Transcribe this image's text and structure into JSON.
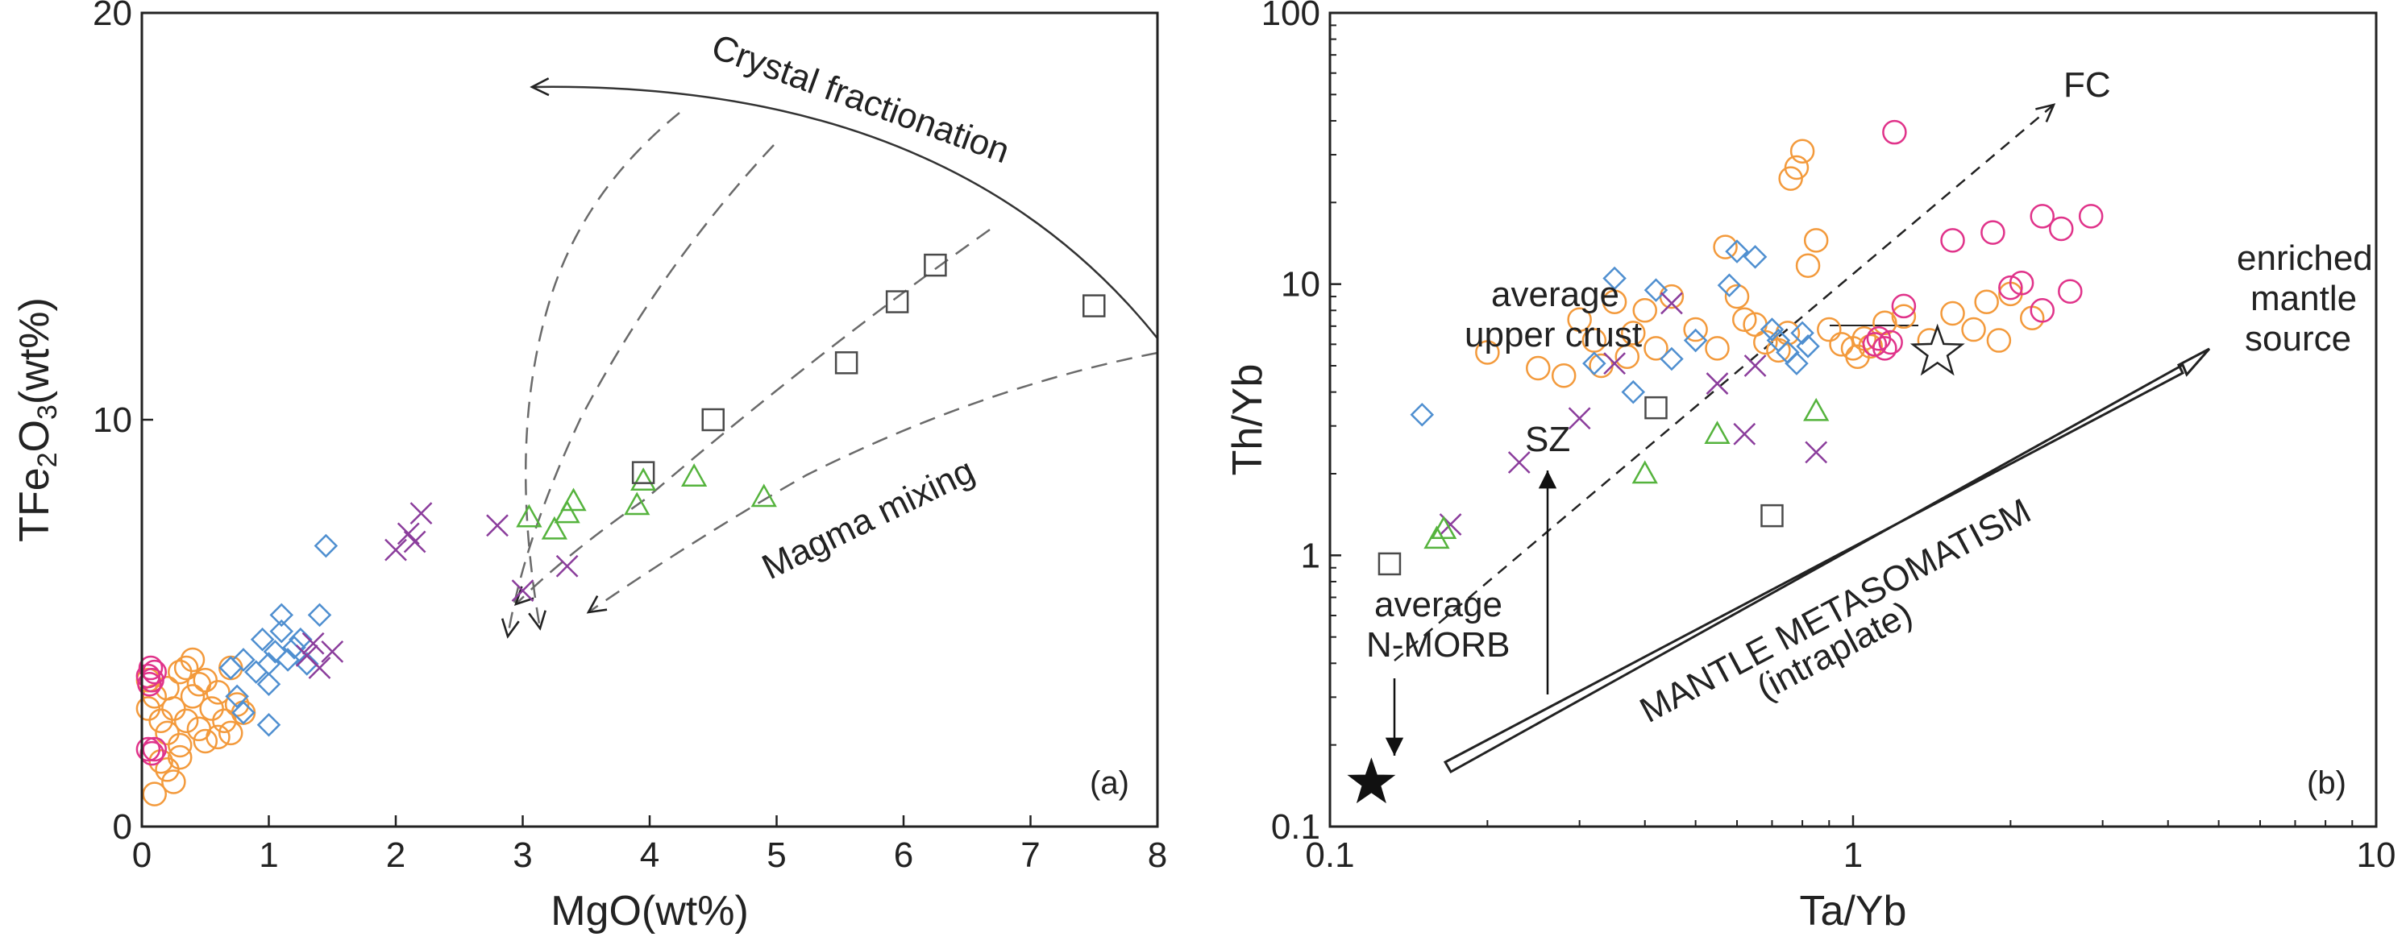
{
  "colors": {
    "axis": "#222222",
    "orange": "#f39a3c",
    "magenta": "#e0338a",
    "blue": "#4f8fd0",
    "purple": "#8b3d9c",
    "green": "#55b33d",
    "square": "#4a4a4a",
    "dashed": "#6a6a6a"
  },
  "chart_data": [
    {
      "type": "scatter",
      "panel_label": "(a)",
      "xlabel": "MgO(wt%)",
      "ylabel_parts": {
        "pre": "TFe",
        "sub1": "2",
        "mid": "O",
        "sub2": "3",
        "post": "(wt%)"
      },
      "xlim": [
        0,
        8
      ],
      "ylim": [
        0,
        20
      ],
      "xticks": [
        0,
        1,
        2,
        3,
        4,
        5,
        6,
        7,
        8
      ],
      "yticks": [
        0,
        10,
        20
      ],
      "xtick_labels": [
        "0",
        "1",
        "2",
        "3",
        "4",
        "5",
        "6",
        "7",
        "8"
      ],
      "ytick_labels": [
        "0",
        "10",
        "20"
      ],
      "series": [
        {
          "name": "group-orange",
          "marker": "circle",
          "color": "orange",
          "points": [
            [
              0.05,
              3.6
            ],
            [
              0.1,
              3.2
            ],
            [
              0.15,
              2.6
            ],
            [
              0.2,
              2.3
            ],
            [
              0.2,
              3.4
            ],
            [
              0.25,
              2.9
            ],
            [
              0.3,
              2.0
            ],
            [
              0.3,
              3.8
            ],
            [
              0.35,
              2.6
            ],
            [
              0.4,
              3.2
            ],
            [
              0.4,
              4.1
            ],
            [
              0.45,
              2.4
            ],
            [
              0.5,
              3.6
            ],
            [
              0.5,
              2.1
            ],
            [
              0.55,
              2.9
            ],
            [
              0.6,
              3.3
            ],
            [
              0.65,
              2.6
            ],
            [
              0.7,
              3.9
            ],
            [
              0.7,
              2.3
            ],
            [
              0.75,
              3.0
            ],
            [
              0.8,
              2.8
            ],
            [
              0.2,
              1.4
            ],
            [
              0.25,
              1.1
            ],
            [
              0.3,
              1.7
            ],
            [
              0.1,
              0.8
            ],
            [
              0.15,
              1.6
            ],
            [
              0.35,
              3.9
            ],
            [
              0.05,
              2.9
            ],
            [
              0.6,
              2.2
            ],
            [
              0.45,
              3.5
            ]
          ]
        },
        {
          "name": "group-magenta",
          "marker": "circle",
          "color": "magenta",
          "points": [
            [
              0.05,
              3.7
            ],
            [
              0.06,
              3.5
            ],
            [
              0.07,
              3.9
            ],
            [
              0.08,
              3.6
            ],
            [
              0.1,
              3.8
            ],
            [
              0.05,
              1.9
            ],
            [
              0.08,
              1.8
            ],
            [
              0.1,
              1.9
            ]
          ]
        },
        {
          "name": "group-blue",
          "marker": "diamond",
          "color": "blue",
          "points": [
            [
              0.7,
              3.9
            ],
            [
              0.8,
              4.1
            ],
            [
              0.9,
              3.8
            ],
            [
              0.95,
              4.6
            ],
            [
              1.0,
              4.0
            ],
            [
              1.0,
              3.5
            ],
            [
              1.05,
              4.3
            ],
            [
              1.1,
              5.2
            ],
            [
              1.1,
              4.8
            ],
            [
              1.15,
              4.1
            ],
            [
              1.2,
              4.4
            ],
            [
              1.3,
              4.0
            ],
            [
              1.4,
              5.2
            ],
            [
              1.45,
              6.9
            ],
            [
              1.0,
              2.5
            ],
            [
              0.8,
              2.8
            ],
            [
              0.75,
              3.2
            ],
            [
              1.25,
              4.6
            ]
          ]
        },
        {
          "name": "group-purple",
          "marker": "cross",
          "color": "purple",
          "points": [
            [
              1.3,
              4.2
            ],
            [
              1.4,
              3.9
            ],
            [
              1.5,
              4.3
            ],
            [
              1.35,
              4.5
            ],
            [
              2.0,
              6.8
            ],
            [
              2.1,
              7.2
            ],
            [
              2.15,
              7.0
            ],
            [
              2.2,
              7.7
            ],
            [
              2.8,
              7.4
            ],
            [
              3.0,
              5.8
            ],
            [
              3.35,
              6.4
            ]
          ]
        },
        {
          "name": "group-green",
          "marker": "triangle",
          "color": "green",
          "points": [
            [
              3.05,
              7.6
            ],
            [
              3.25,
              7.3
            ],
            [
              3.35,
              7.7
            ],
            [
              3.4,
              8.0
            ],
            [
              3.9,
              7.9
            ],
            [
              3.95,
              8.5
            ],
            [
              4.35,
              8.6
            ],
            [
              4.9,
              8.1
            ]
          ]
        },
        {
          "name": "group-square",
          "marker": "square",
          "color": "square",
          "points": [
            [
              3.95,
              8.7
            ],
            [
              4.5,
              10.0
            ],
            [
              5.55,
              11.4
            ],
            [
              5.95,
              12.9
            ],
            [
              6.25,
              13.8
            ],
            [
              7.5,
              12.8
            ]
          ]
        }
      ],
      "annotations": [
        "Crystal fractionation",
        "Magma mixing"
      ]
    },
    {
      "type": "scatter",
      "panel_label": "(b)",
      "xlabel": "Ta/Yb",
      "ylabel": "Th/Yb",
      "xscale": "log",
      "yscale": "log",
      "xlim": [
        0.1,
        10
      ],
      "ylim": [
        0.1,
        100
      ],
      "xticks": [
        0.1,
        1,
        10
      ],
      "yticks": [
        0.1,
        1,
        10,
        100
      ],
      "xtick_labels": [
        "0.1",
        "1",
        "10"
      ],
      "ytick_labels": [
        "0.1",
        "1",
        "10",
        "100"
      ],
      "series": [
        {
          "name": "group-orange",
          "marker": "circle",
          "color": "orange",
          "points": [
            [
              0.2,
              5.6
            ],
            [
              0.28,
              4.6
            ],
            [
              0.3,
              7.4
            ],
            [
              0.32,
              6.2
            ],
            [
              0.33,
              5.0
            ],
            [
              0.35,
              8.6
            ],
            [
              0.37,
              5.4
            ],
            [
              0.38,
              6.6
            ],
            [
              0.4,
              8.0
            ],
            [
              0.42,
              5.8
            ],
            [
              0.45,
              9.0
            ],
            [
              0.5,
              6.8
            ],
            [
              0.55,
              5.8
            ],
            [
              0.57,
              13.7
            ],
            [
              0.6,
              9.0
            ],
            [
              0.65,
              7.1
            ],
            [
              0.68,
              6.1
            ],
            [
              0.72,
              5.7
            ],
            [
              0.75,
              6.6
            ],
            [
              0.76,
              24.5
            ],
            [
              0.78,
              26.9
            ],
            [
              0.8,
              30.9
            ],
            [
              0.82,
              11.7
            ],
            [
              0.85,
              14.5
            ],
            [
              0.9,
              6.8
            ],
            [
              0.95,
              6.0
            ],
            [
              1.0,
              5.8
            ],
            [
              1.02,
              5.4
            ],
            [
              1.05,
              6.3
            ],
            [
              1.08,
              5.9
            ],
            [
              1.15,
              7.2
            ],
            [
              1.25,
              7.6
            ],
            [
              1.4,
              6.2
            ],
            [
              1.55,
              7.8
            ],
            [
              1.7,
              6.8
            ],
            [
              1.8,
              8.6
            ],
            [
              1.9,
              6.2
            ],
            [
              2.2,
              7.5
            ],
            [
              2.0,
              9.2
            ],
            [
              0.25,
              4.9
            ],
            [
              0.62,
              7.4
            ]
          ]
        },
        {
          "name": "group-magenta",
          "marker": "circle",
          "color": "magenta",
          "points": [
            [
              1.1,
              6.0
            ],
            [
              1.12,
              6.3
            ],
            [
              1.15,
              5.8
            ],
            [
              1.18,
              6.1
            ],
            [
              1.2,
              36.3
            ],
            [
              1.25,
              8.3
            ],
            [
              1.55,
              14.5
            ],
            [
              1.85,
              15.5
            ],
            [
              2.0,
              9.7
            ],
            [
              2.1,
              10.1
            ],
            [
              2.3,
              17.8
            ],
            [
              2.5,
              16.0
            ],
            [
              2.6,
              9.4
            ],
            [
              2.85,
              17.8
            ],
            [
              2.3,
              8.0
            ]
          ]
        },
        {
          "name": "group-blue",
          "marker": "diamond",
          "color": "blue",
          "points": [
            [
              0.15,
              3.3
            ],
            [
              0.32,
              5.1
            ],
            [
              0.35,
              10.5
            ],
            [
              0.38,
              4.0
            ],
            [
              0.42,
              9.5
            ],
            [
              0.45,
              5.3
            ],
            [
              0.5,
              6.2
            ],
            [
              0.58,
              9.9
            ],
            [
              0.6,
              13.2
            ],
            [
              0.65,
              12.6
            ],
            [
              0.7,
              6.8
            ],
            [
              0.75,
              5.6
            ],
            [
              0.72,
              6.2
            ],
            [
              0.78,
              5.1
            ],
            [
              0.8,
              6.6
            ],
            [
              0.82,
              5.9
            ]
          ]
        },
        {
          "name": "group-purple",
          "marker": "cross",
          "color": "purple",
          "points": [
            [
              0.17,
              1.3
            ],
            [
              0.23,
              2.2
            ],
            [
              0.3,
              3.2
            ],
            [
              0.35,
              5.1
            ],
            [
              0.45,
              8.5
            ],
            [
              0.55,
              4.3
            ],
            [
              0.62,
              2.8
            ],
            [
              0.65,
              5.0
            ],
            [
              0.85,
              2.4
            ]
          ]
        },
        {
          "name": "group-green",
          "marker": "triangle",
          "color": "green",
          "points": [
            [
              0.16,
              1.15
            ],
            [
              0.165,
              1.25
            ],
            [
              0.4,
              2.0
            ],
            [
              0.55,
              2.8
            ],
            [
              0.85,
              3.4
            ]
          ]
        },
        {
          "name": "group-square",
          "marker": "square",
          "color": "square",
          "points": [
            [
              0.13,
              0.93
            ],
            [
              0.42,
              3.5
            ],
            [
              0.7,
              1.4
            ]
          ]
        }
      ],
      "reference_points": [
        {
          "name": "average-n-morb",
          "marker": "filled-star",
          "x": 0.12,
          "y": 0.145
        },
        {
          "name": "average-upper-crust",
          "marker": "open-star",
          "x": 1.45,
          "y": 5.6
        }
      ],
      "annotations": {
        "fc": "FC",
        "upper_crust_1": "average",
        "upper_crust_2": "upper crust",
        "enriched_1": "enriched",
        "enriched_2": "mantle",
        "enriched_3": "source",
        "sz": "SZ",
        "morb_1": "average",
        "morb_2": "N-MORB",
        "metasomatism": "MANTLE METASOMATISM",
        "intraplate": "(intraplate)"
      }
    }
  ]
}
